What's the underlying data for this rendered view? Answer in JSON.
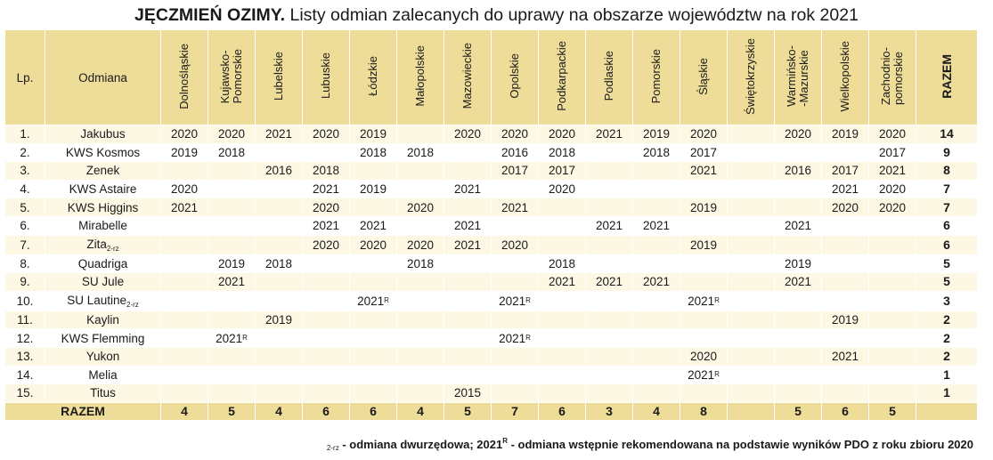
{
  "title": {
    "bold": "JĘCZMIEŃ OZIMY.",
    "rest": " Listy odmian zalecanych do uprawy na obszarze województw na rok 2021"
  },
  "headers": {
    "lp": "Lp.",
    "odmiana": "Odmiana",
    "regions": [
      "Dolnośląskie",
      "Kujawsko-\nPomorskie",
      "Lubelskie",
      "Lubuskie",
      "Łódzkie",
      "Małopolskie",
      "Mazowieckie",
      "Opolskie",
      "Podkarpackie",
      "Podlaskie",
      "Pomorskie",
      "Śląskie",
      "Świętokrzyskie",
      "Warmińsko-\n-Mazurskie",
      "Wielkopolskie",
      "Zachodnio-\npomorskie"
    ],
    "razem": "RAZEM"
  },
  "rows": [
    {
      "lp": "1.",
      "name": "Jakubus",
      "suffix": "",
      "cells": [
        "2020",
        "2020",
        "2021",
        "2020",
        "2019",
        "",
        "2020",
        "2020",
        "2020",
        "2021",
        "2019",
        "2020",
        "",
        "2020",
        "2019",
        "2020"
      ],
      "total": "14"
    },
    {
      "lp": "2.",
      "name": "KWS Kosmos",
      "suffix": "",
      "cells": [
        "2019",
        "2018",
        "",
        "",
        "2018",
        "2018",
        "",
        "2016",
        "2018",
        "",
        "2018",
        "2017",
        "",
        "",
        "",
        "2017"
      ],
      "total": "9"
    },
    {
      "lp": "3.",
      "name": "Zenek",
      "suffix": "",
      "cells": [
        "",
        "",
        "2016",
        "2018",
        "",
        "",
        "",
        "2017",
        "2017",
        "",
        "",
        "2021",
        "",
        "2016",
        "2017",
        "2021"
      ],
      "total": "8"
    },
    {
      "lp": "4.",
      "name": "KWS Astaire",
      "suffix": "",
      "cells": [
        "2020",
        "",
        "",
        "2021",
        "2019",
        "",
        "2021",
        "",
        "2020",
        "",
        "",
        "",
        "",
        "",
        "2021",
        "2020"
      ],
      "total": "7"
    },
    {
      "lp": "5.",
      "name": "KWS Higgins",
      "suffix": "",
      "cells": [
        "2021",
        "",
        "",
        "2020",
        "",
        "2020",
        "",
        "2021",
        "",
        "",
        "",
        "2019",
        "",
        "",
        "2020",
        "2020"
      ],
      "total": "7"
    },
    {
      "lp": "6.",
      "name": "Mirabelle",
      "suffix": "",
      "cells": [
        "",
        "",
        "",
        "2021",
        "2021",
        "",
        "2021",
        "",
        "",
        "2021",
        "2021",
        "",
        "",
        "2021",
        "",
        ""
      ],
      "total": "6"
    },
    {
      "lp": "7.",
      "name": "Zita",
      "suffix": "2-rz",
      "cells": [
        "",
        "",
        "",
        "2020",
        "2020",
        "2020",
        "2021",
        "2020",
        "",
        "",
        "",
        "2019",
        "",
        "",
        "",
        ""
      ],
      "total": "6"
    },
    {
      "lp": "8.",
      "name": "Quadriga",
      "suffix": "",
      "cells": [
        "",
        "2019",
        "2018",
        "",
        "",
        "2018",
        "",
        "",
        "2018",
        "",
        "",
        "",
        "",
        "2019",
        "",
        ""
      ],
      "total": "5"
    },
    {
      "lp": "9.",
      "name": "SU Jule",
      "suffix": "",
      "cells": [
        "",
        "2021",
        "",
        "",
        "",
        "",
        "",
        "",
        "2021",
        "2021",
        "2021",
        "",
        "",
        "2021",
        "",
        ""
      ],
      "total": "5"
    },
    {
      "lp": "10.",
      "name": "SU Lautine",
      "suffix": "2-rz",
      "cells": [
        "",
        "",
        "",
        "",
        "2021R",
        "",
        "",
        "2021R",
        "",
        "",
        "",
        "2021R",
        "",
        "",
        "",
        ""
      ],
      "total": "3"
    },
    {
      "lp": "11.",
      "name": "Kaylin",
      "suffix": "",
      "cells": [
        "",
        "",
        "2019",
        "",
        "",
        "",
        "",
        "",
        "",
        "",
        "",
        "",
        "",
        "",
        "2019",
        ""
      ],
      "total": "2"
    },
    {
      "lp": "12.",
      "name": "KWS Flemming",
      "suffix": "",
      "cells": [
        "",
        "2021R",
        "",
        "",
        "",
        "",
        "",
        "2021R",
        "",
        "",
        "",
        "",
        "",
        "",
        "",
        ""
      ],
      "total": "2"
    },
    {
      "lp": "13.",
      "name": "Yukon",
      "suffix": "",
      "cells": [
        "",
        "",
        "",
        "",
        "",
        "",
        "",
        "",
        "",
        "",
        "",
        "2020",
        "",
        "",
        "2021",
        ""
      ],
      "total": "2"
    },
    {
      "lp": "14.",
      "name": "Melia",
      "suffix": "",
      "cells": [
        "",
        "",
        "",
        "",
        "",
        "",
        "",
        "",
        "",
        "",
        "",
        "2021R",
        "",
        "",
        "",
        ""
      ],
      "total": "1"
    },
    {
      "lp": "15.",
      "name": "Titus",
      "suffix": "",
      "cells": [
        "",
        "",
        "",
        "",
        "",
        "",
        "2015",
        "",
        "",
        "",
        "",
        "",
        "",
        "",
        "",
        ""
      ],
      "total": "1"
    }
  ],
  "footer": {
    "label": "RAZEM",
    "cells": [
      "4",
      "5",
      "4",
      "6",
      "6",
      "4",
      "5",
      "7",
      "6",
      "3",
      "4",
      "8",
      "",
      "5",
      "6",
      "5"
    ]
  },
  "note": {
    "sub": "2-rz",
    "part1": " - odmiana dwurzędowa; 2021",
    "sup": "R",
    "part2": " - odmiana wstępnie rekomendowana na podstawie wyników PDO z roku zbioru 2020"
  },
  "colors": {
    "header_bg": "#eedd99",
    "odd_row_bg": "#fdf8e4",
    "even_row_bg": "#ffffff"
  }
}
